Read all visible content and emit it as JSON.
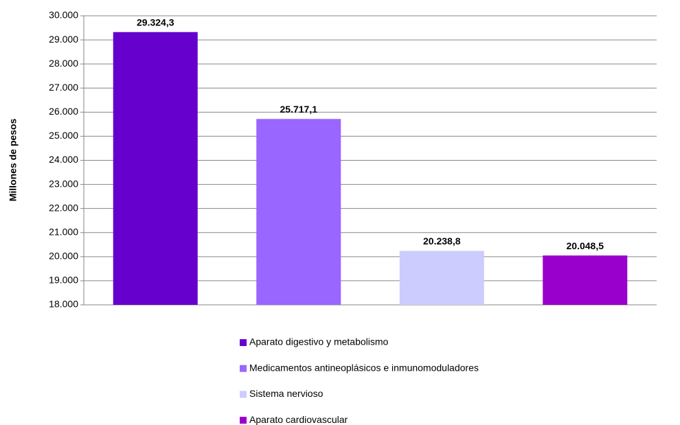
{
  "chart_data": {
    "type": "bar",
    "y_label": "Millones de pesos",
    "categories": [
      "Aparato digestivo y metabolismo",
      "Medicamentos antineoplásicos e inmunomoduladores",
      "Sistema nervioso",
      "Aparato cardiovascular"
    ],
    "values": [
      29324.3,
      25717.1,
      20238.8,
      20048.5
    ],
    "value_labels": [
      "29.324,3",
      "25.717,1",
      "20.238,8",
      "20.048,5"
    ],
    "colors": [
      "#6600cc",
      "#9966ff",
      "#ccccff",
      "#9900cc"
    ],
    "ylim": [
      18000,
      30000
    ],
    "yticks": [
      {
        "value": 18000,
        "label": "18.000"
      },
      {
        "value": 19000,
        "label": "19.000"
      },
      {
        "value": 20000,
        "label": "20.000"
      },
      {
        "value": 21000,
        "label": "21.000"
      },
      {
        "value": 22000,
        "label": "22.000"
      },
      {
        "value": 23000,
        "label": "23.000"
      },
      {
        "value": 24000,
        "label": "24.000"
      },
      {
        "value": 25000,
        "label": "25.000"
      },
      {
        "value": 26000,
        "label": "26.000"
      },
      {
        "value": 27000,
        "label": "27.000"
      },
      {
        "value": 28000,
        "label": "28.000"
      },
      {
        "value": 29000,
        "label": "29.000"
      },
      {
        "value": 30000,
        "label": "30.000"
      }
    ],
    "grid": true,
    "legend": "bottom"
  }
}
